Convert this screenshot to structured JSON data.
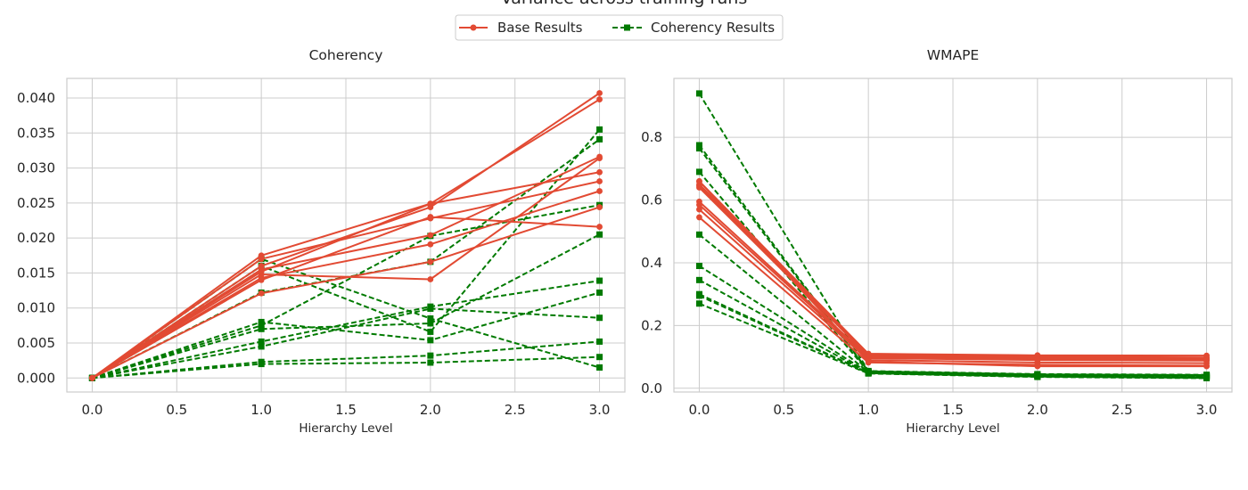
{
  "figure": {
    "suptitle": "Variance across training runs"
  },
  "legend": {
    "placement": "top-center",
    "entries": [
      {
        "label": "Base Results",
        "color": "#e24a33",
        "marker": "circle",
        "linestyle": "solid"
      },
      {
        "label": "Coherency Results",
        "color": "#007a00",
        "marker": "square",
        "linestyle": "dashed"
      }
    ]
  },
  "chart_data": [
    {
      "type": "line",
      "title": "Coherency",
      "xlabel": "Hierarchy Level",
      "ylabel": "",
      "x": [
        0,
        1,
        2,
        3
      ],
      "xlim": [
        -0.15,
        3.15
      ],
      "ylim": [
        -0.002,
        0.0428
      ],
      "xticks": [
        "0.0",
        "0.5",
        "1.0",
        "1.5",
        "2.0",
        "2.5",
        "3.0"
      ],
      "yticks": [
        "0.000",
        "0.005",
        "0.010",
        "0.015",
        "0.020",
        "0.025",
        "0.030",
        "0.035",
        "0.040"
      ],
      "grid": true,
      "series": [
        {
          "group": "Base Results",
          "values": [
            0,
            0.0175,
            0.0249,
            0.0294
          ]
        },
        {
          "group": "Base Results",
          "values": [
            0,
            0.017,
            0.0228,
            0.0281
          ]
        },
        {
          "group": "Base Results",
          "values": [
            0,
            0.016,
            0.0244,
            0.0407
          ]
        },
        {
          "group": "Base Results",
          "values": [
            0,
            0.0155,
            0.0204,
            0.0316
          ]
        },
        {
          "group": "Base Results",
          "values": [
            0,
            0.0152,
            0.0249,
            0.0398
          ]
        },
        {
          "group": "Base Results",
          "values": [
            0,
            0.0148,
            0.0141,
            0.0314
          ]
        },
        {
          "group": "Base Results",
          "values": [
            0,
            0.0143,
            0.0191,
            0.0267
          ]
        },
        {
          "group": "Base Results",
          "values": [
            0,
            0.014,
            0.023,
            0.0216
          ]
        },
        {
          "group": "Base Results",
          "values": [
            0,
            0.0121,
            0.0166,
            0.0244
          ]
        },
        {
          "group": "Coherency Results",
          "values": [
            0,
            0.017,
            0.0085,
            0.0015
          ]
        },
        {
          "group": "Coherency Results",
          "values": [
            0,
            0.016,
            0.0066,
            0.0355
          ]
        },
        {
          "group": "Coherency Results",
          "values": [
            0,
            0.0122,
            0.0166,
            0.0341
          ]
        },
        {
          "group": "Coherency Results",
          "values": [
            0,
            0.008,
            0.0054,
            0.0122
          ]
        },
        {
          "group": "Coherency Results",
          "values": [
            0,
            0.0075,
            0.0203,
            0.0247
          ]
        },
        {
          "group": "Coherency Results",
          "values": [
            0,
            0.007,
            0.0078,
            0.0205
          ]
        },
        {
          "group": "Coherency Results",
          "values": [
            0,
            0.0052,
            0.0102,
            0.0139
          ]
        },
        {
          "group": "Coherency Results",
          "values": [
            0,
            0.0045,
            0.0099,
            0.0086
          ]
        },
        {
          "group": "Coherency Results",
          "values": [
            0,
            0.0023,
            0.0032,
            0.0052
          ]
        },
        {
          "group": "Coherency Results",
          "values": [
            0,
            0.002,
            0.0022,
            0.003
          ]
        }
      ]
    },
    {
      "type": "line",
      "title": "WMAPE",
      "xlabel": "Hierarchy Level",
      "ylabel": "",
      "x": [
        0,
        1,
        2,
        3
      ],
      "xlim": [
        -0.15,
        3.15
      ],
      "ylim": [
        -0.012,
        0.988
      ],
      "xticks": [
        "0.0",
        "0.5",
        "1.0",
        "1.5",
        "2.0",
        "2.5",
        "3.0"
      ],
      "yticks": [
        "0.0",
        "0.2",
        "0.4",
        "0.6",
        "0.8"
      ],
      "grid": true,
      "series": [
        {
          "group": "Base Results",
          "values": [
            0.66,
            0.11,
            0.105,
            0.104
          ]
        },
        {
          "group": "Base Results",
          "values": [
            0.65,
            0.108,
            0.101,
            0.098
          ]
        },
        {
          "group": "Base Results",
          "values": [
            0.645,
            0.106,
            0.098,
            0.095
          ]
        },
        {
          "group": "Base Results",
          "values": [
            0.64,
            0.103,
            0.095,
            0.092
          ]
        },
        {
          "group": "Base Results",
          "values": [
            0.595,
            0.1,
            0.092,
            0.089
          ]
        },
        {
          "group": "Base Results",
          "values": [
            0.585,
            0.096,
            0.09,
            0.088
          ]
        },
        {
          "group": "Base Results",
          "values": [
            0.57,
            0.09,
            0.082,
            0.08
          ]
        },
        {
          "group": "Base Results",
          "values": [
            0.545,
            0.082,
            0.075,
            0.072
          ]
        },
        {
          "group": "Base Results",
          "values": [
            0.66,
            0.085,
            0.07,
            0.07
          ]
        },
        {
          "group": "Coherency Results",
          "values": [
            0.94,
            0.055,
            0.045,
            0.043
          ]
        },
        {
          "group": "Coherency Results",
          "values": [
            0.775,
            0.054,
            0.044,
            0.042
          ]
        },
        {
          "group": "Coherency Results",
          "values": [
            0.765,
            0.053,
            0.043,
            0.041
          ]
        },
        {
          "group": "Coherency Results",
          "values": [
            0.69,
            0.052,
            0.042,
            0.04
          ]
        },
        {
          "group": "Coherency Results",
          "values": [
            0.49,
            0.051,
            0.041,
            0.039
          ]
        },
        {
          "group": "Coherency Results",
          "values": [
            0.39,
            0.05,
            0.04,
            0.037
          ]
        },
        {
          "group": "Coherency Results",
          "values": [
            0.345,
            0.049,
            0.039,
            0.036
          ]
        },
        {
          "group": "Coherency Results",
          "values": [
            0.3,
            0.049,
            0.038,
            0.034
          ]
        },
        {
          "group": "Coherency Results",
          "values": [
            0.295,
            0.048,
            0.037,
            0.033
          ]
        },
        {
          "group": "Coherency Results",
          "values": [
            0.27,
            0.047,
            0.036,
            0.032
          ]
        }
      ]
    }
  ]
}
